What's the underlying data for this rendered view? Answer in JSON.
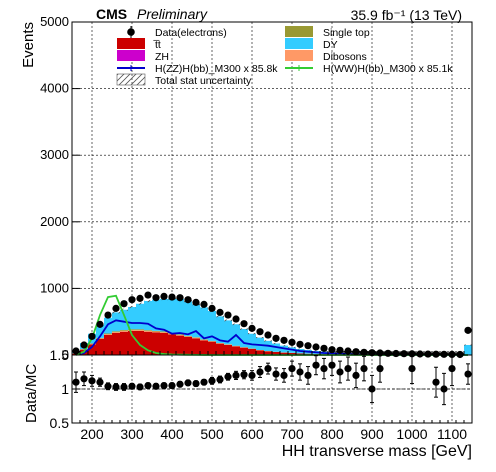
{
  "header": {
    "experiment": "CMS",
    "status": "Preliminary",
    "lumi": "35.9 fb⁻¹ (13 TeV)"
  },
  "chart_data": [
    {
      "type": "area",
      "panel": "main",
      "stacked": true,
      "ylabel": "Events",
      "xlim": [
        150,
        1150
      ],
      "ylim": [
        0,
        5000
      ],
      "yticks": [
        "0",
        "1000",
        "2000",
        "3000",
        "4000",
        "5000"
      ],
      "grid": true,
      "legend_position": "top",
      "bin_edges": [
        150,
        170,
        190,
        210,
        230,
        250,
        270,
        290,
        310,
        330,
        350,
        370,
        390,
        410,
        430,
        450,
        470,
        490,
        510,
        530,
        550,
        570,
        590,
        610,
        630,
        650,
        670,
        690,
        710,
        730,
        750,
        770,
        790,
        810,
        830,
        850,
        870,
        890,
        910,
        930,
        950,
        970,
        990,
        1010,
        1030,
        1050,
        1070,
        1090,
        1110,
        1130,
        1150
      ],
      "legend": [
        {
          "key": "data",
          "label": "Data(electrons)",
          "style": "marker",
          "color": "#000000"
        },
        {
          "key": "singletop",
          "label": "Single top",
          "style": "fill",
          "color": "#999933"
        },
        {
          "key": "ttbar",
          "label": "t̅t",
          "style": "fill",
          "color": "#cc0000"
        },
        {
          "key": "dy",
          "label": "DY",
          "style": "fill",
          "color": "#33ccff"
        },
        {
          "key": "zh",
          "label": "ZH",
          "style": "fill",
          "color": "#cc00cc"
        },
        {
          "key": "dibosons",
          "label": "Dibosons",
          "style": "fill",
          "color": "#ff9966"
        },
        {
          "key": "sig_zz",
          "label": "H(ZZ)H(bb)_M300 x 85.8k",
          "style": "line",
          "color": "#0000cc"
        },
        {
          "key": "sig_ww",
          "label": "H(WW)H(bb)_M300 x 85.1k",
          "style": "line",
          "color": "#33cc33"
        },
        {
          "key": "unc",
          "label": "Total stat uncertainty",
          "style": "hatch",
          "color": "#888888"
        }
      ],
      "series": [
        {
          "name": "t̅t",
          "key": "ttbar",
          "color": "#cc0000",
          "values": [
            20,
            80,
            160,
            240,
            300,
            330,
            350,
            360,
            360,
            350,
            340,
            330,
            310,
            290,
            270,
            250,
            220,
            200,
            170,
            150,
            130,
            110,
            90,
            70,
            55,
            45,
            35,
            30,
            22,
            18,
            14,
            10,
            8,
            6,
            5,
            4,
            3,
            2,
            2,
            1,
            1,
            1,
            1,
            1,
            0,
            0,
            0,
            0,
            0,
            0
          ]
        },
        {
          "name": "ZH",
          "key": "zh",
          "color": "#cc00cc",
          "values": [
            0,
            0,
            0,
            0,
            0,
            0,
            0,
            0,
            0,
            0,
            0,
            0,
            0,
            0,
            0,
            0,
            0,
            0,
            0,
            0,
            0,
            0,
            0,
            0,
            0,
            0,
            0,
            0,
            0,
            0,
            0,
            0,
            0,
            0,
            0,
            0,
            0,
            0,
            0,
            0,
            0,
            0,
            0,
            0,
            0,
            0,
            0,
            0,
            0,
            0
          ]
        },
        {
          "name": "Dibosons",
          "key": "dibosons",
          "color": "#ff9966",
          "values": [
            2,
            4,
            8,
            10,
            12,
            14,
            14,
            14,
            14,
            13,
            12,
            12,
            11,
            10,
            9,
            9,
            8,
            7,
            6,
            6,
            5,
            4,
            4,
            3,
            3,
            2,
            2,
            2,
            2,
            1,
            1,
            1,
            1,
            1,
            1,
            1,
            0,
            0,
            0,
            0,
            0,
            0,
            0,
            0,
            0,
            0,
            0,
            0,
            0,
            0
          ]
        },
        {
          "name": "Single top",
          "key": "singletop",
          "color": "#999933",
          "values": [
            2,
            4,
            6,
            8,
            10,
            12,
            12,
            12,
            12,
            11,
            11,
            10,
            10,
            9,
            8,
            8,
            7,
            6,
            5,
            5,
            4,
            4,
            3,
            3,
            2,
            2,
            2,
            1,
            1,
            1,
            1,
            1,
            1,
            0,
            0,
            0,
            0,
            0,
            0,
            0,
            0,
            0,
            0,
            0,
            0,
            0,
            0,
            0,
            0,
            0
          ]
        },
        {
          "name": "DY",
          "key": "dy",
          "color": "#33ccff",
          "values": [
            38,
            92,
            146,
            192,
            238,
            284,
            304,
            334,
            384,
            436,
            468,
            488,
            518,
            531,
            520,
            496,
            480,
            447,
            399,
            359,
            322,
            272,
            223,
            185,
            152,
            124,
            101,
            82,
            65,
            55,
            44,
            38,
            30,
            24,
            19,
            16,
            14,
            12,
            10,
            8,
            6,
            5,
            4,
            4,
            3,
            3,
            2,
            2,
            2,
            150
          ]
        },
        {
          "name": "Data(electrons)",
          "key": "data",
          "style": "points",
          "values": [
            60,
            150,
            280,
            460,
            600,
            700,
            770,
            830,
            850,
            900,
            860,
            880,
            870,
            860,
            830,
            790,
            760,
            700,
            640,
            600,
            540,
            470,
            400,
            350,
            300,
            250,
            220,
            190,
            160,
            140,
            120,
            100,
            80,
            70,
            60,
            50,
            40,
            35,
            30,
            25,
            22,
            20,
            18,
            15,
            14,
            12,
            10,
            9,
            8,
            370
          ],
          "errors": [
            8,
            12,
            17,
            21,
            24,
            26,
            28,
            29,
            29,
            30,
            29,
            30,
            29,
            29,
            29,
            28,
            28,
            26,
            25,
            24,
            23,
            22,
            20,
            19,
            17,
            16,
            15,
            14,
            13,
            12,
            11,
            10,
            9,
            8,
            8,
            7,
            6,
            6,
            5,
            5,
            5,
            4,
            4,
            4,
            4,
            3,
            3,
            3,
            3,
            19
          ]
        },
        {
          "name": "H(ZZ)H(bb)_M300 x 85.8k",
          "key": "sig_zz",
          "style": "line",
          "color": "#0000cc",
          "values": [
            5,
            30,
            120,
            280,
            460,
            520,
            500,
            480,
            480,
            470,
            400,
            380,
            320,
            330,
            310,
            360,
            250,
            280,
            220,
            200,
            300,
            180,
            160,
            150,
            140,
            120,
            100,
            80,
            60,
            50,
            40,
            30,
            25,
            20,
            15,
            10,
            8,
            6,
            5,
            4,
            3,
            3,
            2,
            2,
            2,
            1,
            1,
            1,
            1,
            1
          ]
        },
        {
          "name": "H(WW)H(bb)_M300 x 85.1k",
          "key": "sig_ww",
          "style": "line",
          "color": "#33cc33",
          "values": [
            0,
            50,
            250,
            600,
            870,
            890,
            600,
            300,
            150,
            70,
            30,
            15,
            8,
            5,
            3,
            2,
            1,
            0,
            0,
            0,
            0,
            0,
            0,
            0,
            0,
            0,
            0,
            0,
            0,
            0,
            0,
            0,
            0,
            0,
            0,
            0,
            0,
            0,
            0,
            0,
            0,
            0,
            0,
            0,
            0,
            0,
            0,
            0,
            0,
            0
          ]
        }
      ]
    },
    {
      "type": "scatter",
      "panel": "ratio",
      "ylabel": "Data/MC",
      "xlabel": "HH transverse mass [GeV]",
      "xlim": [
        150,
        1150
      ],
      "ylim": [
        0.5,
        1.5
      ],
      "yticks": [
        "0.5",
        "1",
        "1.5"
      ],
      "xticks": [
        "200",
        "300",
        "400",
        "500",
        "600",
        "700",
        "800",
        "900",
        "1000",
        "1100"
      ],
      "grid": true,
      "reference_line": 1.0,
      "x": [
        160,
        180,
        200,
        220,
        240,
        260,
        280,
        300,
        320,
        340,
        360,
        380,
        400,
        420,
        440,
        460,
        480,
        500,
        520,
        540,
        560,
        580,
        600,
        620,
        640,
        660,
        680,
        700,
        720,
        740,
        760,
        780,
        800,
        820,
        840,
        860,
        880,
        900,
        920,
        940,
        960,
        980,
        1000,
        1020,
        1040,
        1060,
        1080,
        1100,
        1120,
        1140
      ],
      "values": [
        1.1,
        1.15,
        1.12,
        1.1,
        1.04,
        1.03,
        1.03,
        1.04,
        1.03,
        1.05,
        1.04,
        1.05,
        1.05,
        1.07,
        1.09,
        1.08,
        1.1,
        1.12,
        1.14,
        1.18,
        1.2,
        1.21,
        1.2,
        1.25,
        1.3,
        1.22,
        1.2,
        1.3,
        1.25,
        1.2,
        1.35,
        1.3,
        1.35,
        1.25,
        1.3,
        1.2,
        1.3,
        1.0,
        1.3,
        null,
        null,
        null,
        1.3,
        null,
        null,
        1.1,
        1.0,
        1.3,
        null,
        1.22
      ],
      "errors": [
        0.15,
        0.1,
        0.08,
        0.06,
        0.05,
        0.05,
        0.05,
        0.04,
        0.04,
        0.04,
        0.04,
        0.04,
        0.04,
        0.04,
        0.04,
        0.04,
        0.04,
        0.05,
        0.05,
        0.05,
        0.06,
        0.06,
        0.07,
        0.08,
        0.08,
        0.09,
        0.1,
        0.11,
        0.12,
        0.13,
        0.14,
        0.15,
        0.15,
        0.16,
        0.17,
        0.18,
        0.18,
        0.2,
        0.2,
        null,
        null,
        null,
        0.22,
        null,
        null,
        0.22,
        0.23,
        0.25,
        null,
        0.15
      ]
    }
  ]
}
